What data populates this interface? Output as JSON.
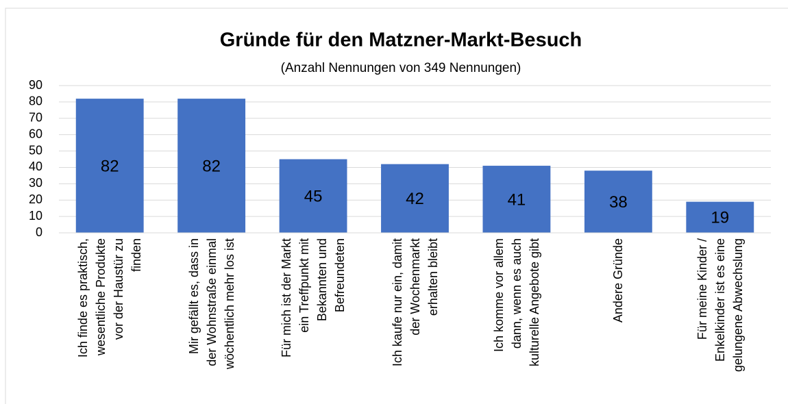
{
  "chart_data": {
    "type": "bar",
    "title": "Gründe für den Matzner-Markt-Besuch",
    "subtitle": "(Anzahl Nennungen von 349 Nennungen)",
    "categories": [
      "Ich finde es praktisch,\nwesentliche Produkte\nvor der Haustür zu\nfinden",
      "Mir gefällt es, dass in\nder Wohnstraße einmal\nwöchentlich mehr los ist",
      "Für mich ist der Markt\nein Treffpunkt mit\nBekannten und\nBefreundeten",
      "Ich kaufe nur ein, damit\nder Wochenmarkt\nerhalten bleibt",
      "Ich komme vor allem\ndann, wenn es auch\nkulturelle Angebote gibt",
      "Andere Gründe",
      "Für meine Kinder /\nEnkelkinder ist es eine\ngelungene Abwechslung"
    ],
    "values": [
      82,
      82,
      45,
      42,
      41,
      38,
      19
    ],
    "color": "#4472c4",
    "ylim": [
      0,
      90
    ],
    "yticks": [
      0,
      10,
      20,
      30,
      40,
      50,
      60,
      70,
      80,
      90
    ],
    "grid": true
  }
}
